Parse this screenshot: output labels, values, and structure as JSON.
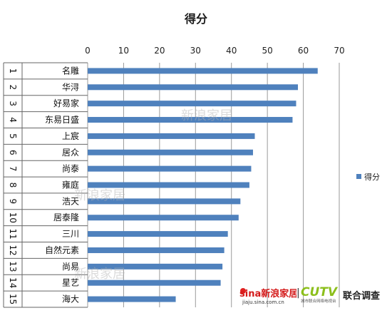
{
  "chart_data": {
    "type": "bar",
    "orientation": "horizontal",
    "title": "得分",
    "xlim": [
      0,
      70
    ],
    "xticks": [
      0,
      10,
      20,
      30,
      40,
      50,
      60,
      70
    ],
    "ranks": [
      "1",
      "2",
      "3",
      "4",
      "5",
      "6",
      "7",
      "8",
      "9",
      "10",
      "11",
      "12",
      "13",
      "14",
      "15"
    ],
    "categories": [
      "名雕",
      "华浔",
      "好易家",
      "东易日盛",
      "上宸",
      "居众",
      "尚泰",
      "雍庭",
      "浩天",
      "居泰隆",
      "三川",
      "自然元素",
      "尚易",
      "星艺",
      "海大"
    ],
    "series": [
      {
        "name": "得分",
        "values": [
          64,
          58.5,
          58,
          57,
          46.5,
          46,
          45.5,
          45,
          42.5,
          42,
          39,
          38,
          37.5,
          37,
          24.5
        ]
      }
    ],
    "legend": {
      "position": "right",
      "label": "得分"
    },
    "colors": {
      "bar": "#4F81BD",
      "grid": "#9a9a9a"
    },
    "watermarks": [
      "新浪家居",
      "新浪家居",
      "新浪家居"
    ]
  },
  "branding": {
    "sina_logo": "sina新浪家居",
    "sina_url": "jiaju.sina.com.cn",
    "separator": "|",
    "cutv_logo": "CUTV",
    "cutv_sub": "城市联合网络电视台",
    "survey_label": "联合调查"
  }
}
